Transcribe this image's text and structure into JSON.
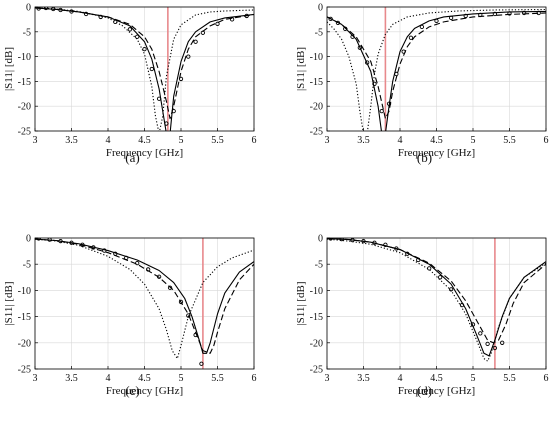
{
  "chart_data": [
    {
      "type": "line",
      "caption": "(a)",
      "xlabel": "Frequency [GHz]",
      "ylabel": "|S11| [dB]",
      "xlim": [
        3,
        6
      ],
      "ylim": [
        -25,
        0
      ],
      "xticks": [
        "3",
        "3.5",
        "4",
        "4.5",
        "5",
        "5.5",
        "6"
      ],
      "yticks": [
        "0",
        "-5",
        "-10",
        "-15",
        "-20",
        "-25"
      ],
      "grid": true,
      "vline": 4.82,
      "series": [
        {
          "style": "solid",
          "x": [
            3,
            3.3,
            3.6,
            4.0,
            4.3,
            4.5,
            4.6,
            4.7,
            4.75,
            4.8,
            4.85,
            4.9,
            5.0,
            5.1,
            5.2,
            5.4,
            5.6,
            6.0
          ],
          "y": [
            -0.2,
            -0.5,
            -1.0,
            -2.0,
            -3.8,
            -7.0,
            -10.5,
            -16.5,
            -21.0,
            -25.5,
            -25.5,
            -18.0,
            -11.0,
            -7.0,
            -5.0,
            -3.0,
            -2.2,
            -1.5
          ]
        },
        {
          "style": "dashed",
          "x": [
            3,
            3.3,
            3.6,
            4.0,
            4.3,
            4.5,
            4.6,
            4.7,
            4.8,
            4.85,
            4.9,
            5.0,
            5.1,
            5.2,
            5.4,
            5.6,
            6.0
          ],
          "y": [
            -0.2,
            -0.5,
            -1.0,
            -2.0,
            -3.5,
            -6.0,
            -8.5,
            -13.0,
            -19.0,
            -22.5,
            -20.0,
            -13.0,
            -8.5,
            -6.0,
            -3.8,
            -2.5,
            -1.5
          ]
        },
        {
          "style": "dotted",
          "x": [
            3,
            3.3,
            3.6,
            4.0,
            4.2,
            4.4,
            4.5,
            4.6,
            4.65,
            4.7,
            4.75,
            4.8,
            4.9,
            5.0,
            5.2,
            5.4,
            5.6,
            6.0
          ],
          "y": [
            -0.1,
            -0.4,
            -0.9,
            -2.2,
            -3.8,
            -6.5,
            -9.5,
            -16.0,
            -22.0,
            -25.5,
            -22.0,
            -14.0,
            -6.5,
            -3.6,
            -1.6,
            -1.0,
            -0.8,
            -0.6
          ]
        },
        {
          "style": "markers",
          "x": [
            3.05,
            3.15,
            3.25,
            3.35,
            3.5,
            3.7,
            3.9,
            4.1,
            4.3,
            4.4,
            4.5,
            4.6,
            4.7,
            4.8,
            4.9,
            5.0,
            5.1,
            5.2,
            5.3,
            5.5,
            5.7,
            5.9
          ],
          "y": [
            -0.3,
            -0.2,
            -0.4,
            -0.6,
            -0.9,
            -1.4,
            -2.0,
            -3.0,
            -4.5,
            -6.0,
            -8.5,
            -12.5,
            -18.5,
            -23.5,
            -21.0,
            -14.5,
            -10.0,
            -7.0,
            -5.2,
            -3.4,
            -2.5,
            -1.8
          ]
        }
      ]
    },
    {
      "type": "line",
      "caption": "(b)",
      "xlabel": "Frequency [GHz]",
      "ylabel": "|S11| [dB]",
      "xlim": [
        3,
        6
      ],
      "ylim": [
        -25,
        0
      ],
      "xticks": [
        "3",
        "3.5",
        "4",
        "4.5",
        "5",
        "5.5",
        "6"
      ],
      "yticks": [
        "0",
        "-5",
        "-10",
        "-15",
        "-20",
        "-25"
      ],
      "grid": true,
      "vline": 3.8,
      "series": [
        {
          "style": "solid",
          "x": [
            3,
            3.2,
            3.4,
            3.6,
            3.7,
            3.75,
            3.8,
            3.85,
            3.9,
            4.0,
            4.1,
            4.2,
            4.4,
            4.6,
            5.0,
            5.5,
            6.0
          ],
          "y": [
            -2.0,
            -3.5,
            -6.5,
            -13.0,
            -20.0,
            -25.5,
            -25.5,
            -20.0,
            -15.0,
            -9.0,
            -6.0,
            -4.3,
            -2.8,
            -2.0,
            -1.4,
            -1.0,
            -0.9
          ]
        },
        {
          "style": "dashed",
          "x": [
            3,
            3.2,
            3.4,
            3.6,
            3.7,
            3.8,
            3.85,
            3.9,
            4.0,
            4.1,
            4.2,
            4.4,
            4.6,
            5.0,
            5.5,
            6.0
          ],
          "y": [
            -2.0,
            -3.5,
            -6.0,
            -11.0,
            -16.0,
            -22.5,
            -21.0,
            -17.0,
            -11.5,
            -8.0,
            -6.0,
            -4.0,
            -3.0,
            -2.0,
            -1.5,
            -1.2
          ]
        },
        {
          "style": "dotted",
          "x": [
            3,
            3.1,
            3.2,
            3.3,
            3.4,
            3.45,
            3.5,
            3.55,
            3.6,
            3.65,
            3.7,
            3.8,
            3.9,
            4.1,
            4.4,
            4.8,
            5.3,
            6.0
          ],
          "y": [
            -3.0,
            -4.5,
            -6.5,
            -10.0,
            -15.5,
            -21.0,
            -25.5,
            -25.5,
            -20.0,
            -13.5,
            -9.5,
            -5.5,
            -3.5,
            -2.0,
            -1.2,
            -0.8,
            -0.6,
            -0.5
          ]
        },
        {
          "style": "markers",
          "x": [
            3.05,
            3.15,
            3.25,
            3.35,
            3.45,
            3.55,
            3.65,
            3.75,
            3.85,
            3.95,
            4.05,
            4.15,
            4.3,
            4.5,
            4.7,
            4.9,
            5.1,
            5.3,
            5.5,
            5.7,
            5.9
          ],
          "y": [
            -2.4,
            -3.2,
            -4.4,
            -6.0,
            -8.2,
            -11.2,
            -15.5,
            -21.0,
            -19.5,
            -13.5,
            -9.0,
            -6.2,
            -4.0,
            -2.8,
            -2.2,
            -1.8,
            -1.6,
            -1.4,
            -1.3,
            -1.2,
            -1.2
          ]
        }
      ]
    },
    {
      "type": "line",
      "caption": "(c)",
      "xlabel": "Frequency [GHz]",
      "ylabel": "|S11| [dB]",
      "xlim": [
        3,
        6
      ],
      "ylim": [
        -25,
        0
      ],
      "xticks": [
        "3",
        "3.5",
        "4",
        "4.5",
        "5",
        "5.5",
        "6"
      ],
      "yticks": [
        "0",
        "-5",
        "-10",
        "-15",
        "-20",
        "-25"
      ],
      "grid": true,
      "vline": 5.3,
      "series": [
        {
          "style": "solid",
          "x": [
            3,
            3.3,
            3.6,
            4.0,
            4.4,
            4.7,
            4.9,
            5.05,
            5.15,
            5.25,
            5.3,
            5.35,
            5.4,
            5.5,
            5.6,
            5.8,
            6.0
          ],
          "y": [
            -0.2,
            -0.5,
            -1.1,
            -2.4,
            -4.2,
            -6.2,
            -8.5,
            -11.5,
            -15.0,
            -19.5,
            -22.0,
            -22.0,
            -20.0,
            -14.5,
            -10.5,
            -6.5,
            -4.5
          ]
        },
        {
          "style": "dashed",
          "x": [
            3,
            3.3,
            3.6,
            4.0,
            4.4,
            4.7,
            4.9,
            5.1,
            5.2,
            5.3,
            5.4,
            5.45,
            5.5,
            5.6,
            5.8,
            6.0
          ],
          "y": [
            -0.2,
            -0.5,
            -1.2,
            -2.8,
            -5.0,
            -7.5,
            -10.0,
            -14.5,
            -18.0,
            -21.5,
            -22.0,
            -20.5,
            -18.0,
            -13.5,
            -8.0,
            -5.0
          ]
        },
        {
          "style": "dotted",
          "x": [
            3,
            3.3,
            3.6,
            4.0,
            4.3,
            4.5,
            4.7,
            4.8,
            4.88,
            4.95,
            5.0,
            5.1,
            5.3,
            5.5,
            5.7,
            6.0
          ],
          "y": [
            -0.2,
            -0.6,
            -1.4,
            -3.5,
            -6.0,
            -8.8,
            -13.5,
            -17.5,
            -21.5,
            -23.0,
            -20.5,
            -15.0,
            -8.5,
            -5.5,
            -3.8,
            -2.3
          ]
        },
        {
          "style": "markers",
          "x": [
            3.05,
            3.2,
            3.35,
            3.5,
            3.65,
            3.8,
            3.95,
            4.1,
            4.25,
            4.4,
            4.55,
            4.7,
            4.85,
            5.0,
            5.1,
            5.2,
            5.28
          ],
          "y": [
            -0.1,
            -0.3,
            -0.6,
            -0.9,
            -1.3,
            -1.8,
            -2.4,
            -3.0,
            -3.8,
            -4.8,
            -6.0,
            -7.4,
            -9.5,
            -12.2,
            -14.8,
            -18.5,
            -24.0
          ]
        }
      ]
    },
    {
      "type": "line",
      "caption": "(d)",
      "xlabel": "Frequency [GHz]",
      "ylabel": "|S11| [dB]",
      "xlim": [
        3,
        6
      ],
      "ylim": [
        -25,
        0
      ],
      "xticks": [
        "3",
        "3.5",
        "4",
        "4.5",
        "5",
        "5.5",
        "6"
      ],
      "yticks": [
        "0",
        "-5",
        "-10",
        "-15",
        "-20",
        "-25"
      ],
      "grid": true,
      "vline": 5.3,
      "series": [
        {
          "style": "solid",
          "x": [
            3,
            3.3,
            3.6,
            4.0,
            4.4,
            4.7,
            4.9,
            5.05,
            5.15,
            5.22,
            5.3,
            5.4,
            5.5,
            5.7,
            6.0
          ],
          "y": [
            -0.1,
            -0.3,
            -0.8,
            -2.2,
            -5.0,
            -8.8,
            -13.5,
            -18.5,
            -22.0,
            -22.5,
            -19.5,
            -15.0,
            -11.5,
            -7.5,
            -4.5
          ]
        },
        {
          "style": "dashed",
          "x": [
            3,
            3.3,
            3.6,
            4.0,
            4.4,
            4.7,
            4.9,
            5.1,
            5.2,
            5.28,
            5.35,
            5.45,
            5.55,
            5.7,
            6.0
          ],
          "y": [
            -0.1,
            -0.3,
            -0.8,
            -2.2,
            -4.8,
            -8.2,
            -12.0,
            -17.0,
            -19.5,
            -20.0,
            -19.5,
            -16.5,
            -12.5,
            -8.5,
            -5.0
          ]
        },
        {
          "style": "dotted",
          "x": [
            3,
            3.3,
            3.6,
            4.0,
            4.4,
            4.7,
            4.9,
            5.05,
            5.15,
            5.2,
            5.25,
            5.35,
            5.5,
            5.7,
            6.0
          ],
          "y": [
            -0.2,
            -0.6,
            -1.2,
            -2.8,
            -6.0,
            -10.0,
            -14.5,
            -19.5,
            -23.0,
            -23.5,
            -22.0,
            -17.0,
            -11.5,
            -7.5,
            -4.8
          ]
        },
        {
          "style": "markers",
          "x": [
            3.05,
            3.2,
            3.35,
            3.5,
            3.65,
            3.8,
            3.95,
            4.1,
            4.25,
            4.4,
            4.55,
            4.7,
            4.85,
            5.0,
            5.1,
            5.2,
            5.3,
            5.4
          ],
          "y": [
            -0.1,
            -0.2,
            -0.4,
            -0.6,
            -0.9,
            -1.3,
            -2.0,
            -3.0,
            -4.2,
            -5.8,
            -7.5,
            -9.8,
            -12.8,
            -16.5,
            -18.2,
            -20.2,
            -21.0,
            -20.0
          ]
        }
      ]
    }
  ],
  "colors": {
    "line": "#000000",
    "vline": "#e8898c",
    "grid": "#d8d8d8"
  }
}
